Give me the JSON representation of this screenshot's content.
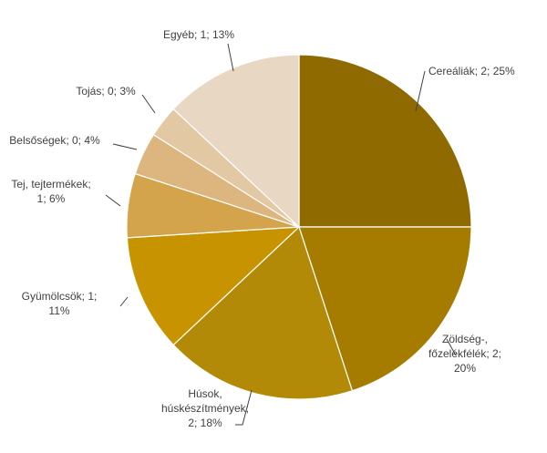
{
  "chart_data": {
    "type": "pie",
    "title": "",
    "start_angle_deg": 0,
    "direction": "clockwise",
    "slices": [
      {
        "name": "Cereáliák",
        "value": 2,
        "percent": 25,
        "color": "#8F6A00",
        "label_lines": [
          "Cereáliák; 2; 25%"
        ]
      },
      {
        "name": "Zöldség-, főzelékfélék",
        "value": 2,
        "percent": 20,
        "color": "#A67C00",
        "label_lines": [
          "Zöldség-,",
          "főzelékfélék; 2;",
          "20%"
        ]
      },
      {
        "name": "Húsok, húskészítmények",
        "value": 2,
        "percent": 18,
        "color": "#B38A07",
        "label_lines": [
          "Húsok,",
          "húskészítmények;",
          "2; 18%"
        ]
      },
      {
        "name": "Gyümölcsök",
        "value": 1,
        "percent": 11,
        "color": "#C79400",
        "label_lines": [
          "Gyümölcsök; 1;",
          "11%"
        ]
      },
      {
        "name": "Tej, tejtermékek",
        "value": 1,
        "percent": 6,
        "color": "#D4A44D",
        "label_lines": [
          "Tej, tejtermékek;",
          "1; 6%"
        ]
      },
      {
        "name": "Belsőségek",
        "value": 0,
        "percent": 4,
        "color": "#DDB67F",
        "label_lines": [
          "Belsőségek; 0; 4%"
        ]
      },
      {
        "name": "Tojás",
        "value": 0,
        "percent": 3,
        "color": "#E3C9A3",
        "label_lines": [
          "Tojás; 0; 3%"
        ]
      },
      {
        "name": "Egyéb",
        "value": 1,
        "percent": 13,
        "color": "#E8D7C3",
        "label_lines": [
          "Egyéb; 1; 13%"
        ]
      }
    ]
  }
}
